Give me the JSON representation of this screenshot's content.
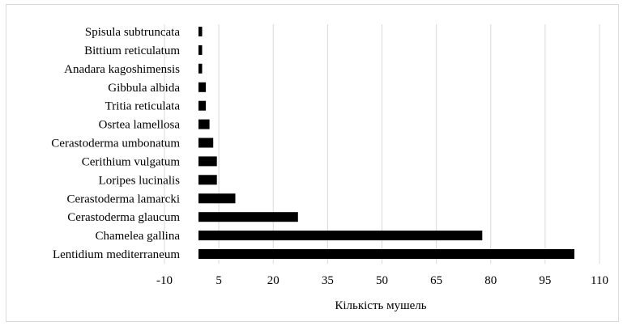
{
  "chart_data": {
    "type": "bar",
    "orientation": "horizontal",
    "categories": [
      "Spisula subtruncata",
      "Bittium reticulatum",
      "Anadara kagoshimensis",
      "Gibbula albida",
      "Tritia reticulata",
      "Osrtea lamellosa",
      "Cerastoderma umbonatum",
      "Cerithium vulgatum",
      "Loripes lucinalis",
      "Cerastoderma lamarcki",
      "Cerastoderma glaucum",
      "Chamelea gallina",
      "Lentidium mediterraneum"
    ],
    "values": [
      1,
      1,
      1,
      2,
      2,
      3,
      4,
      5,
      5,
      10,
      27,
      77,
      102
    ],
    "xlabel": "Кількість мушель",
    "ylabel": "",
    "xlim": [
      -10,
      110
    ],
    "x_ticks": [
      "-10",
      "5",
      "20",
      "35",
      "50",
      "65",
      "80",
      "95",
      "110"
    ],
    "x_tick_values": [
      -10,
      5,
      20,
      35,
      50,
      65,
      80,
      95,
      110
    ],
    "grid": true,
    "legend": "none",
    "colors": {
      "bar": "#000000",
      "grid": "#d9d9d9",
      "frame": "#d9d9d9"
    }
  }
}
